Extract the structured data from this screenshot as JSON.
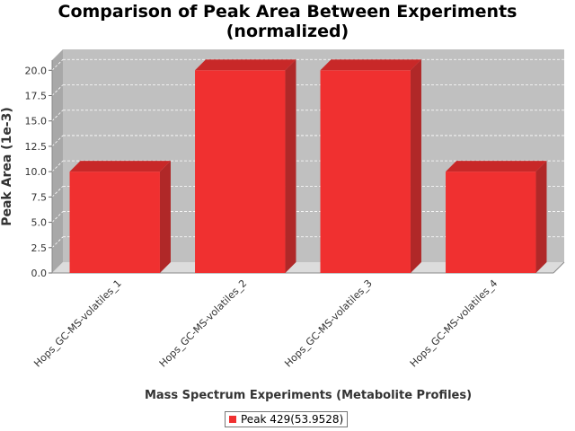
{
  "chart_data": {
    "type": "bar",
    "title": "Comparison of Peak Area Between Experiments",
    "subtitle": "(normalized)",
    "xlabel": "Mass Spectrum Experiments (Metabolite Profiles)",
    "ylabel": "Peak Area (1e-3)",
    "categories": [
      "Hops_GC-MS-volatiles_1",
      "Hops_GC-MS-volatiles_2",
      "Hops_GC-MS-volatiles_3",
      "Hops_GC-MS-volatiles_4"
    ],
    "series": [
      {
        "name": "Peak 429(53.9528)",
        "values": [
          10.0,
          20.0,
          20.0,
          10.0
        ],
        "color": "#f03030"
      }
    ],
    "ylim": [
      0,
      21.0
    ],
    "yticks": [
      "0.0",
      "2.5",
      "5.0",
      "7.5",
      "10.0",
      "12.5",
      "15.0",
      "17.5",
      "20.0"
    ],
    "grid": true,
    "bar_style": "3d",
    "legend_position": "bottom",
    "colors": {
      "plot_background": "#c0c0c0",
      "bar_front": "#f03030",
      "bar_top": "#c82828",
      "bar_side": "#b02828"
    }
  }
}
